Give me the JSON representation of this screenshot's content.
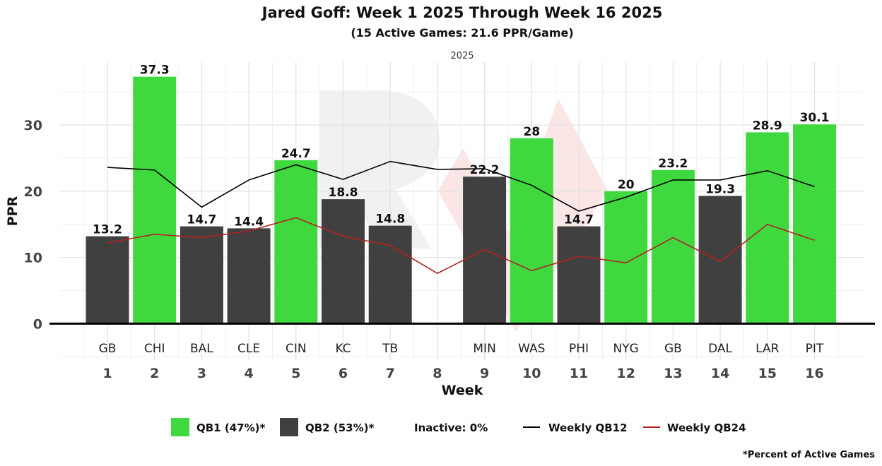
{
  "chart_data": {
    "type": "bar",
    "title": "Jared Goff: Week 1 2025 Through Week 16 2025",
    "subtitle": "(15 Active Games: 21.6 PPR/Game)",
    "facet_label": "2025",
    "xlabel": "Week",
    "ylabel": "PPR",
    "ylim": [
      -5.5,
      39.5
    ],
    "yticks": [
      0,
      10,
      20,
      30
    ],
    "weeks": [
      1,
      2,
      3,
      4,
      5,
      6,
      7,
      8,
      9,
      10,
      11,
      12,
      13,
      14,
      15,
      16
    ],
    "opponents": [
      "GB",
      "CHI",
      "BAL",
      "CLE",
      "CIN",
      "KC",
      "TB",
      "",
      "MIN",
      "WAS",
      "PHI",
      "NYG",
      "GB",
      "DAL",
      "LAR",
      "PIT"
    ],
    "values": [
      13.2,
      37.3,
      14.7,
      14.4,
      24.7,
      18.8,
      14.8,
      null,
      22.2,
      28,
      14.7,
      20,
      23.2,
      19.3,
      28.9,
      30.1
    ],
    "tiers": [
      "QB2",
      "QB1",
      "QB2",
      "QB2",
      "QB1",
      "QB2",
      "QB2",
      null,
      "QB2",
      "QB1",
      "QB2",
      "QB1",
      "QB1",
      "QB2",
      "QB1",
      "QB1"
    ],
    "series": [
      {
        "name": "Weekly QB12",
        "color": "#000000",
        "values": [
          23.6,
          23.2,
          17.6,
          21.7,
          24,
          21.8,
          24.5,
          23.3,
          23.4,
          20.9,
          17,
          19.1,
          21.7,
          21.7,
          23.1,
          20.7
        ]
      },
      {
        "name": "Weekly QB24",
        "color": "#b22222",
        "values": [
          12.2,
          13.5,
          13,
          14,
          16,
          13.2,
          11.8,
          7.6,
          11.2,
          8,
          10.2,
          9.2,
          13,
          9.4,
          15,
          12.6
        ]
      }
    ],
    "colors": {
      "QB1": "#3fd93f",
      "QB2": "#404040"
    },
    "legend": {
      "position": "bottom",
      "qb1": "QB1 (47%)*",
      "qb2": "QB2 (53%)*",
      "inactive": "Inactive: 0%",
      "qb12": "Weekly QB12",
      "qb24": "Weekly QB24"
    },
    "footnote": "*Percent of Active Games",
    "grid": true
  }
}
